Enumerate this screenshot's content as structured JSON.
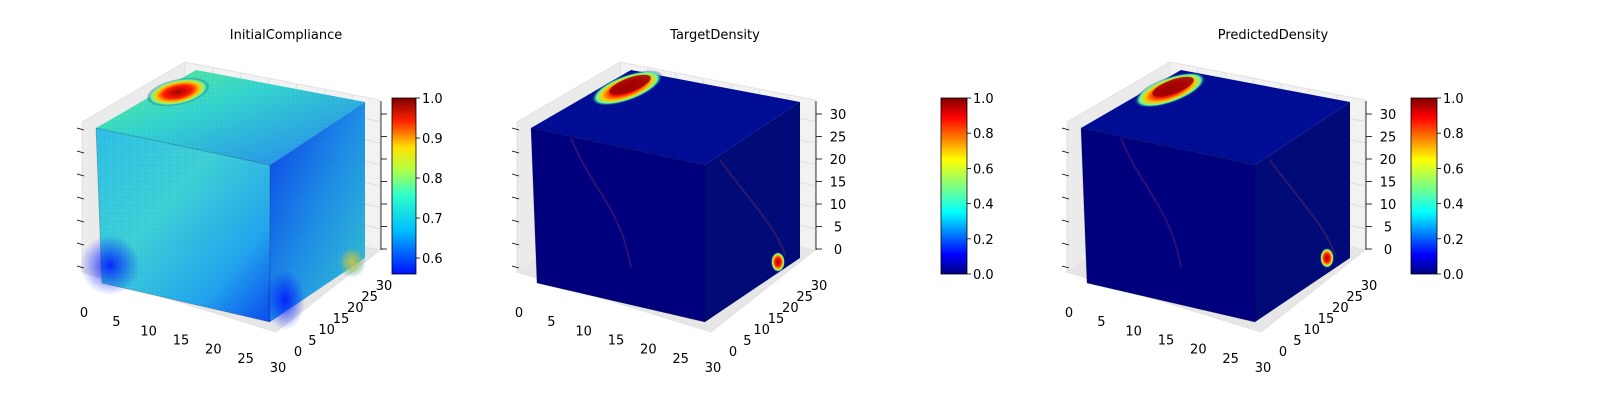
{
  "chart_data": [
    {
      "type": "voxel3d",
      "title": "InitialCompliance",
      "grid": true,
      "x_ticks": [
        "0",
        "5",
        "10",
        "15",
        "20",
        "25",
        "30"
      ],
      "y_ticks": [
        "0",
        "5",
        "10",
        "15",
        "20",
        "25",
        "30"
      ],
      "z_ticks": [],
      "colorbar": {
        "cmap": "jet",
        "vmin": 0.56,
        "vmax": 1.0,
        "ticks": [
          "0.6",
          "0.7",
          "0.8",
          "0.9",
          "1.0"
        ],
        "tick_values": [
          0.6,
          0.7,
          0.8,
          0.9,
          1.0
        ]
      }
    },
    {
      "type": "voxel3d",
      "title": "TargetDensity",
      "grid": true,
      "x_ticks": [
        "0",
        "5",
        "10",
        "15",
        "20",
        "25",
        "30"
      ],
      "y_ticks": [
        "0",
        "5",
        "10",
        "15",
        "20",
        "25",
        "30"
      ],
      "z_ticks": [
        "0",
        "5",
        "10",
        "15",
        "20",
        "25",
        "30"
      ],
      "colorbar": {
        "cmap": "jet",
        "vmin": 0.0,
        "vmax": 1.0,
        "ticks": [
          "0.0",
          "0.2",
          "0.4",
          "0.6",
          "0.8",
          "1.0"
        ],
        "tick_values": [
          0.0,
          0.2,
          0.4,
          0.6,
          0.8,
          1.0
        ]
      }
    },
    {
      "type": "voxel3d",
      "title": "PredictedDensity",
      "grid": true,
      "x_ticks": [
        "0",
        "5",
        "10",
        "15",
        "20",
        "25",
        "30"
      ],
      "y_ticks": [
        "0",
        "5",
        "10",
        "15",
        "20",
        "25",
        "30"
      ],
      "z_ticks": [
        "0",
        "5",
        "10",
        "15",
        "20",
        "25",
        "30"
      ],
      "colorbar": {
        "cmap": "jet",
        "vmin": 0.0,
        "vmax": 1.0,
        "ticks": [
          "0.0",
          "0.2",
          "0.4",
          "0.6",
          "0.8",
          "1.0"
        ],
        "tick_values": [
          0.0,
          0.2,
          0.4,
          0.6,
          0.8,
          1.0
        ]
      }
    }
  ],
  "colors": {
    "jet_dark_blue": "#00007f",
    "jet_blue": "#0000ff",
    "jet_cyan": "#00ffff",
    "jet_yellow": "#ffff00",
    "jet_red": "#ff0000",
    "jet_dark_red": "#7f0000",
    "pane": "#f2f2f2",
    "grid": "#d9d9d9"
  }
}
